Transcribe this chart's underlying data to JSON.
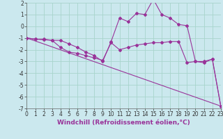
{
  "xlabel": "Windchill (Refroidissement éolien,°C)",
  "bg_color": "#cbe8ee",
  "grid_color": "#a8d4cc",
  "line_color": "#993399",
  "x_min": 0,
  "x_max": 23,
  "y_min": -7,
  "y_max": 2,
  "line1_x": [
    0,
    1,
    2,
    3,
    4,
    5,
    6,
    7,
    8,
    9,
    10,
    11,
    12,
    13,
    14,
    15,
    16,
    17,
    18,
    19,
    20,
    21,
    22,
    23
  ],
  "line1_y": [
    -1.0,
    -1.1,
    -1.1,
    -1.2,
    -1.2,
    -1.5,
    -1.8,
    -2.2,
    -2.5,
    -3.0,
    -1.3,
    0.7,
    0.4,
    1.1,
    1.0,
    2.3,
    1.0,
    0.7,
    0.15,
    0.05,
    -3.0,
    -3.1,
    -2.8,
    -6.8
  ],
  "line2_x": [
    0,
    1,
    2,
    3,
    4,
    5,
    6,
    7,
    8,
    9,
    10,
    11,
    12,
    13,
    14,
    15,
    16,
    17,
    18,
    19,
    20,
    21,
    22,
    23
  ],
  "line2_y": [
    -1.0,
    -1.1,
    -1.15,
    -1.2,
    -1.8,
    -2.2,
    -2.3,
    -2.5,
    -2.7,
    -2.9,
    -1.4,
    -2.0,
    -1.8,
    -1.6,
    -1.5,
    -1.4,
    -1.4,
    -1.3,
    -1.3,
    -3.1,
    -3.0,
    -3.0,
    -2.8,
    -6.8
  ],
  "line3_x": [
    0,
    23
  ],
  "line3_y": [
    -1.0,
    -6.8
  ],
  "tick_fontsize": 5.5,
  "xlabel_fontsize": 6.5
}
